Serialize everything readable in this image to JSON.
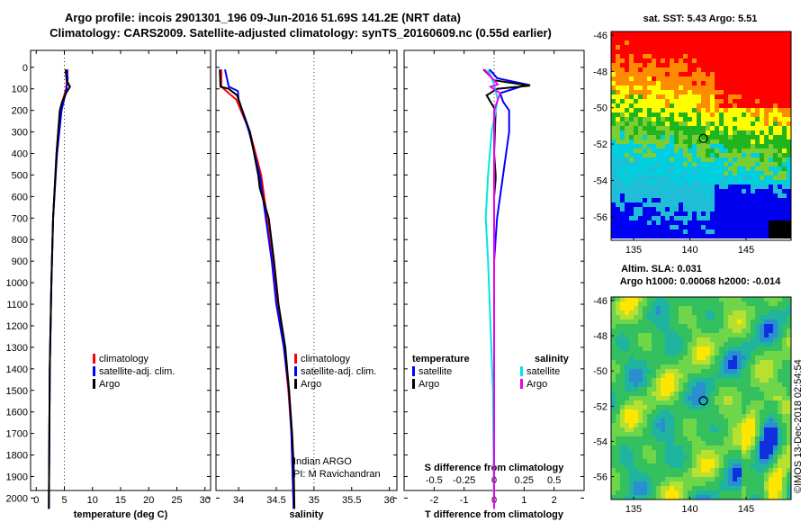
{
  "title_line1": "Argo profile: incois 2901301_196 09-Jun-2016 51.69S 141.2E (NRT data)",
  "title_line2": "Climatology: CARS2009. Satellite-adjusted climatology: synTS_20160609.nc (0.55d earlier)",
  "sst_title": "sat. SST: 5.43 Argo: 5.51",
  "sla_title1": "Altim. SLA: 0.031",
  "sla_title2": "Argo h1000: 0.00068 h2000: -0.014",
  "credit": "Indian ARGO",
  "pi": "PI: M Ravichandran",
  "watermark": "©IMOS 13-Dec-2018 02:54:54",
  "colors": {
    "climatology": "#ff0000",
    "satellite": "#0000ff",
    "argo": "#000000",
    "cyan": "#00e5e5",
    "magenta": "#ee00ee"
  },
  "legend_profiles": [
    {
      "label": "climatology",
      "color": "#ff0000"
    },
    {
      "label": "satellite-adj. clim.",
      "color": "#0000ff"
    },
    {
      "label": "Argo",
      "color": "#000000"
    }
  ],
  "legend_diff": {
    "left_header": "temperature",
    "right_header": "salinity",
    "left": [
      {
        "label": "satellite",
        "color": "#0000ff"
      },
      {
        "label": "Argo",
        "color": "#000000"
      }
    ],
    "right": [
      {
        "label": "satellite",
        "color": "#00e5e5"
      },
      {
        "label": "Argo",
        "color": "#ee00ee"
      }
    ]
  },
  "chart_data": [
    {
      "type": "line",
      "xlabel": "temperature (deg C)",
      "xlim": [
        -1,
        31
      ],
      "xticks": [
        0,
        5,
        10,
        15,
        20,
        25,
        30
      ],
      "ylim": [
        2070,
        0
      ],
      "yticks": [
        0,
        100,
        200,
        300,
        400,
        500,
        600,
        700,
        800,
        900,
        1000,
        1100,
        1200,
        1300,
        1400,
        1500,
        1600,
        1700,
        1800,
        1900,
        2000
      ],
      "series": [
        {
          "name": "climatology",
          "color": "#ff0000",
          "depth": [
            10,
            100,
            200,
            400,
            700,
            1000,
            1400,
            2050
          ],
          "values": [
            5.6,
            5.3,
            4.2,
            3.6,
            3.0,
            2.7,
            2.4,
            2.25
          ]
        },
        {
          "name": "satellite-adj. clim.",
          "color": "#0000ff",
          "depth": [
            10,
            50,
            100,
            200,
            400,
            700,
            1000,
            1400,
            2050
          ],
          "values": [
            5.4,
            5.6,
            5.4,
            4.5,
            3.7,
            3.0,
            2.7,
            2.4,
            2.25
          ]
        },
        {
          "name": "Argo",
          "color": "#000000",
          "depth": [
            10,
            60,
            90,
            120,
            160,
            200,
            400,
            700,
            1000,
            1400,
            2050
          ],
          "values": [
            5.2,
            5.4,
            6.0,
            5.3,
            4.6,
            4.2,
            3.6,
            3.0,
            2.7,
            2.4,
            2.25
          ]
        }
      ]
    },
    {
      "type": "line",
      "xlabel": "salinity",
      "xlim": [
        33.7,
        36.1
      ],
      "xticks": [
        34,
        34.5,
        35,
        35.5,
        36
      ],
      "ylim": [
        2070,
        0
      ],
      "series": [
        {
          "name": "climatology",
          "color": "#ff0000",
          "depth": [
            10,
            90,
            150,
            300,
            500,
            700,
            900,
            1100,
            1300,
            1500,
            1700,
            2050
          ],
          "values": [
            33.77,
            33.77,
            33.97,
            34.15,
            34.3,
            34.38,
            34.45,
            34.52,
            34.6,
            34.66,
            34.7,
            34.73
          ]
        },
        {
          "name": "satellite-adj. clim.",
          "color": "#0000ff",
          "depth": [
            10,
            90,
            110,
            150,
            300,
            500,
            700,
            900,
            1100,
            1300,
            1500,
            1700,
            2050
          ],
          "values": [
            33.82,
            33.87,
            33.99,
            34.0,
            34.14,
            34.28,
            34.36,
            34.44,
            34.5,
            34.6,
            34.67,
            34.7,
            34.73
          ]
        },
        {
          "name": "Argo",
          "color": "#000000",
          "depth": [
            10,
            90,
            100,
            130,
            300,
            500,
            560,
            700,
            900,
            1100,
            1300,
            1500,
            1700,
            1850,
            2050
          ],
          "values": [
            33.75,
            33.76,
            33.87,
            33.98,
            34.15,
            34.26,
            34.28,
            34.4,
            34.47,
            34.53,
            34.62,
            34.67,
            34.71,
            34.73,
            34.74
          ]
        }
      ]
    },
    {
      "type": "line",
      "xlabel": "T difference from climatology",
      "xlabel2": "S difference from climatology",
      "xlim": [
        -3,
        3
      ],
      "xticks": [
        -2,
        -1,
        0,
        1,
        2
      ],
      "x2ticks": [
        -0.5,
        -0.25,
        0,
        0.25,
        0.5
      ],
      "x2tick_labels": [
        "-0.5",
        "-0.25",
        "0",
        "0.25",
        "0.5"
      ],
      "ylim": [
        2070,
        0
      ],
      "series": [
        {
          "name": "temperature satellite",
          "color": "#0000ff",
          "axis": "T",
          "depth": [
            10,
            50,
            80,
            120,
            160,
            200,
            300,
            500,
            600,
            700,
            900,
            1200,
            1500,
            2050
          ],
          "values": [
            -0.15,
            0.1,
            1.1,
            0.2,
            0.3,
            0.5,
            0.5,
            0.3,
            0.2,
            0.1,
            0.0,
            0.0,
            0.0,
            0.0
          ]
        },
        {
          "name": "temperature Argo",
          "color": "#000000",
          "axis": "T",
          "depth": [
            10,
            60,
            85,
            100,
            130,
            200,
            400,
            500,
            520,
            600,
            700,
            1000,
            1500,
            2050
          ],
          "values": [
            -0.35,
            0.0,
            1.2,
            0.1,
            -0.25,
            0.05,
            0.0,
            0.05,
            0.05,
            0.0,
            0.0,
            0.0,
            0.0,
            0.0
          ]
        },
        {
          "name": "salinity satellite",
          "color": "#00e5e5",
          "axis": "S",
          "depth": [
            10,
            80,
            150,
            300,
            500,
            700,
            900,
            1200,
            1500,
            2050
          ],
          "values": [
            -0.05,
            0.0,
            0.03,
            -0.02,
            -0.05,
            -0.07,
            -0.05,
            -0.03,
            -0.01,
            0.0
          ]
        },
        {
          "name": "salinity Argo",
          "color": "#ee00ee",
          "axis": "S",
          "depth": [
            10,
            80,
            90,
            120,
            200,
            400,
            700,
            1000,
            1500,
            2050
          ],
          "values": [
            -0.08,
            0.03,
            -0.03,
            0.05,
            0.0,
            0.0,
            0.0,
            0.0,
            0.0,
            0.0
          ]
        }
      ]
    },
    {
      "type": "heatmap",
      "title": "sat. SST: 5.43 Argo: 5.51",
      "xlim": [
        133,
        149
      ],
      "ylim": [
        -57.3,
        -45.8
      ],
      "xticks": [
        135,
        140,
        145
      ],
      "yticks": [
        -46,
        -48,
        -50,
        -52,
        -54,
        -56
      ],
      "marker": {
        "lon": 141.2,
        "lat": -51.69
      }
    },
    {
      "type": "heatmap",
      "title": "Altim. SLA: 0.031",
      "xlim": [
        133,
        149
      ],
      "ylim": [
        -57.3,
        -45.8
      ],
      "xticks": [
        135,
        140,
        145
      ],
      "yticks": [
        -46,
        -48,
        -50,
        -52,
        -54,
        -56
      ],
      "marker": {
        "lon": 141.2,
        "lat": -51.69
      }
    }
  ]
}
